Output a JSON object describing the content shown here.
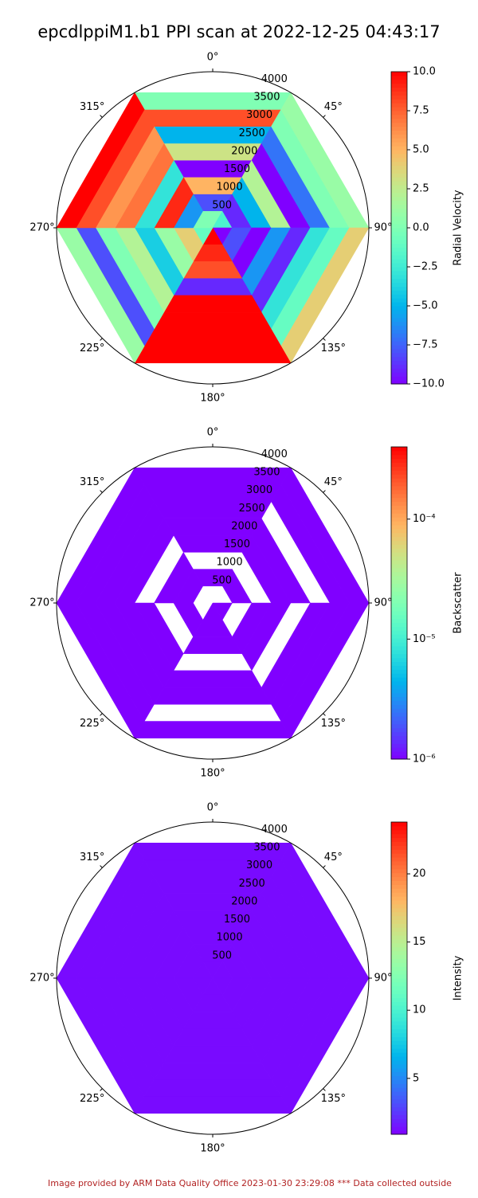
{
  "title": "epcdlppiM1.b1 PPI scan at 2022-12-25 04:43:17",
  "footer": "Image provided by ARM Data Quality Office 2023-01-30 23:29:08    *** Data collected outside",
  "chart_data": [
    {
      "type": "ppi",
      "colorbar_label": "Radial Velocity",
      "colormap": "rainbow",
      "log_scale": false,
      "clim": [
        -10,
        10
      ],
      "cticks": [
        {
          "value": -10,
          "label": "−10.0"
        },
        {
          "value": -7.5,
          "label": "−7.5"
        },
        {
          "value": -5,
          "label": "−5.0"
        },
        {
          "value": -2.5,
          "label": "−2.5"
        },
        {
          "value": 0,
          "label": "0.0"
        },
        {
          "value": 2.5,
          "label": "2.5"
        },
        {
          "value": 5,
          "label": "5.0"
        },
        {
          "value": 7.5,
          "label": "7.5"
        },
        {
          "value": 10,
          "label": "10.0"
        }
      ],
      "rlim": [
        0,
        4000
      ],
      "rticks": [
        500,
        1000,
        1500,
        2000,
        2500,
        3000,
        3500,
        4000
      ],
      "thetaticks": [
        {
          "value": 0,
          "label": "0°"
        },
        {
          "value": 45,
          "label": "45°"
        },
        {
          "value": 90,
          "label": "90°"
        },
        {
          "value": 135,
          "label": "135°"
        },
        {
          "value": 180,
          "label": "180°"
        },
        {
          "value": 225,
          "label": "225°"
        },
        {
          "value": 270,
          "label": "270°"
        },
        {
          "value": 315,
          "label": "315°"
        }
      ],
      "azimuth_edges": [
        -30,
        30,
        90,
        150,
        210,
        270,
        330
      ],
      "range_edges": [
        0,
        500,
        1000,
        1500,
        2000,
        2500,
        3000,
        3500,
        4000
      ],
      "values": [
        [
          0,
          -8,
          5,
          -10,
          3,
          -5,
          8,
          0
        ],
        [
          -2,
          -9,
          -5,
          2,
          -10,
          -7,
          0,
          1
        ],
        [
          -10,
          -8,
          -10,
          -6,
          -9,
          -3,
          -1,
          4
        ],
        [
          10,
          9,
          8,
          -9,
          10,
          10,
          10,
          10
        ],
        [
          -1,
          4,
          1,
          -4,
          2,
          0,
          -8,
          1
        ],
        [
          0,
          -6,
          9,
          -3,
          7,
          6,
          8,
          10
        ]
      ]
    },
    {
      "type": "ppi",
      "colorbar_label": "Backscatter",
      "colormap": "rainbow",
      "log_scale": true,
      "clim": [
        1e-06,
        0.0004
      ],
      "cticks": [
        {
          "value": 1e-06,
          "label": "10⁻⁶"
        },
        {
          "value": 1e-05,
          "label": "10⁻⁵"
        },
        {
          "value": 0.0001,
          "label": "10⁻⁴"
        }
      ],
      "rlim": [
        0,
        4000
      ],
      "rticks": [
        500,
        1000,
        1500,
        2000,
        2500,
        3000,
        3500,
        4000
      ],
      "thetaticks": [
        {
          "value": 0,
          "label": "0°"
        },
        {
          "value": 45,
          "label": "45°"
        },
        {
          "value": 90,
          "label": "90°"
        },
        {
          "value": 135,
          "label": "135°"
        },
        {
          "value": 180,
          "label": "180°"
        },
        {
          "value": 225,
          "label": "225°"
        },
        {
          "value": 270,
          "label": "270°"
        },
        {
          "value": 315,
          "label": "315°"
        }
      ],
      "azimuth_edges": [
        -30,
        30,
        90,
        150,
        210,
        270,
        330
      ],
      "range_edges": [
        0,
        500,
        1000,
        1500,
        2000,
        2500,
        3000,
        3500,
        4000
      ],
      "values": [
        [
          null,
          1e-06,
          null,
          1e-06,
          1e-06,
          1e-06,
          1e-06,
          1e-06
        ],
        [
          null,
          1e-06,
          null,
          1e-06,
          1e-06,
          null,
          1e-06,
          1e-06
        ],
        [
          1e-06,
          null,
          1e-06,
          1e-06,
          null,
          1e-06,
          1e-06,
          1e-06
        ],
        [
          1e-06,
          1e-06,
          1e-06,
          null,
          1e-06,
          1e-06,
          null,
          1e-06
        ],
        [
          null,
          1e-06,
          null,
          1e-06,
          1e-06,
          1e-06,
          1e-06,
          1e-06
        ],
        [
          null,
          1e-06,
          1e-06,
          null,
          1e-06,
          1e-06,
          1e-06,
          1e-06
        ]
      ]
    },
    {
      "type": "ppi",
      "colorbar_label": "Intensity",
      "colormap": "rainbow",
      "log_scale": false,
      "clim": [
        0.9,
        23.8
      ],
      "cticks": [
        5,
        10,
        15,
        20
      ],
      "rlim": [
        0,
        4000
      ],
      "rticks": [
        500,
        1000,
        1500,
        2000,
        2500,
        3000,
        3500,
        4000
      ],
      "thetaticks": [
        {
          "value": 0,
          "label": "0°"
        },
        {
          "value": 45,
          "label": "45°"
        },
        {
          "value": 90,
          "label": "90°"
        },
        {
          "value": 135,
          "label": "135°"
        },
        {
          "value": 180,
          "label": "180°"
        },
        {
          "value": 225,
          "label": "225°"
        },
        {
          "value": 270,
          "label": "270°"
        },
        {
          "value": 315,
          "label": "315°"
        }
      ],
      "azimuth_edges": [
        -30,
        30,
        90,
        150,
        210,
        270,
        330
      ],
      "range_edges": [
        0,
        500,
        1000,
        1500,
        2000,
        2500,
        3000,
        3500,
        4000
      ],
      "values": [
        [
          1.2,
          1.2,
          1.2,
          1.2,
          1.2,
          1.2,
          1.2,
          1.2
        ],
        [
          1.2,
          1.2,
          1.2,
          1.2,
          1.2,
          1.2,
          1.2,
          1.2
        ],
        [
          1.2,
          1.2,
          1.2,
          1.2,
          1.2,
          1.2,
          1.2,
          1.2
        ],
        [
          1.2,
          1.2,
          1.2,
          1.2,
          1.2,
          1.2,
          1.2,
          1.2
        ],
        [
          1.2,
          1.2,
          1.2,
          1.2,
          1.2,
          1.2,
          1.2,
          1.2
        ],
        [
          1.2,
          1.2,
          1.2,
          1.2,
          1.2,
          1.2,
          1.2,
          1.2
        ]
      ]
    }
  ]
}
